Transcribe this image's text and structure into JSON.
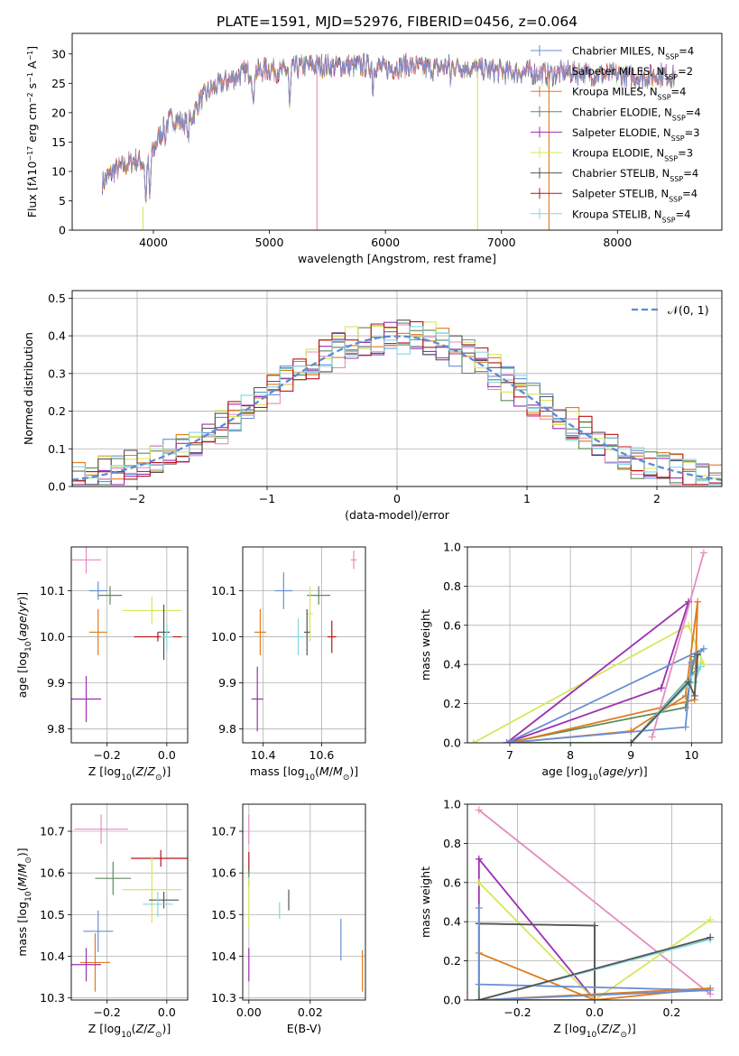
{
  "figure": {
    "title": "PLATE=1591, MJD=52976, FIBERID=0456, z=0.064"
  },
  "colors": {
    "chabrier_miles": "#6b8fd6",
    "salpeter_miles": "#e58dc0",
    "kroupa_miles": "#e07b1c",
    "chabrier_elodie": "#5f8a60",
    "salpeter_elodie": "#9b2fb0",
    "kroupa_elodie": "#d4e85a",
    "chabrier_stelib": "#555555",
    "salpeter_stelib": "#b81418",
    "kroupa_stelib": "#86d6dd",
    "normal": "#5b8bd6",
    "grid": "#b0b0b0"
  },
  "chart_data": [
    {
      "type": "line",
      "panel": "spectrum",
      "xlabel": "wavelength [Angstrom, rest frame]",
      "ylabel_html": "Flux [f<tspan font-style='italic'>λ</tspan>10<tspan baseline-shift='super' font-size='8'>−17</tspan> erg cm<tspan baseline-shift='super' font-size='8'>−2</tspan> s<tspan baseline-shift='super' font-size='8'>−1</tspan> A<tspan baseline-shift='super' font-size='8'>−1</tspan>]",
      "xlim": [
        3300,
        8900
      ],
      "ylim": [
        0,
        33.5
      ],
      "xticks": [
        "4000",
        "5000",
        "6000",
        "7000",
        "8000"
      ],
      "xtick_values": [
        4000,
        5000,
        6000,
        7000,
        8000
      ],
      "yticks": [
        "0",
        "5",
        "10",
        "15",
        "20",
        "25",
        "30"
      ],
      "ytick_values": [
        0,
        5,
        10,
        15,
        20,
        25,
        30
      ],
      "legend": [
        {
          "key": "chabrier_miles",
          "label": "Chabrier MILES, N",
          "n": "=4"
        },
        {
          "key": "salpeter_miles",
          "label": "Salpeter MILES, N",
          "n": "=2"
        },
        {
          "key": "kroupa_miles",
          "label": "Kroupa MILES, N",
          "n": "=4"
        },
        {
          "key": "chabrier_elodie",
          "label": "Chabrier ELODIE, N",
          "n": "=4"
        },
        {
          "key": "salpeter_elodie",
          "label": "Salpeter ELODIE, N",
          "n": "=3"
        },
        {
          "key": "kroupa_elodie",
          "label": "Kroupa ELODIE, N",
          "n": "=3"
        },
        {
          "key": "chabrier_stelib",
          "label": "Chabrier STELIB, N",
          "n": "=4"
        },
        {
          "key": "salpeter_stelib",
          "label": "Salpeter STELIB, N",
          "n": "=4"
        },
        {
          "key": "kroupa_stelib",
          "label": "Kroupa STELIB, N",
          "n": "=4"
        }
      ],
      "legend_sub": "SSP",
      "continuum": {
        "x": [
          3560,
          3650,
          3750,
          3850,
          3950,
          4050,
          4150,
          4300,
          4400,
          4500,
          4600,
          4700,
          4800,
          4900,
          5000,
          5100,
          5200,
          5300,
          5400,
          5500,
          5600,
          5700,
          5800,
          5900,
          6000,
          6200,
          6400,
          6600,
          6800,
          7000,
          7200,
          7400,
          7600,
          7800,
          8000,
          8200,
          8400,
          8500
        ],
        "y": [
          8,
          10,
          11,
          12,
          11,
          16,
          19,
          18,
          22,
          24,
          25,
          26,
          27,
          27,
          27.5,
          27,
          27.5,
          28,
          28,
          28,
          28,
          28,
          28,
          28,
          27.5,
          28,
          27.5,
          28,
          27.5,
          27,
          27,
          26.5,
          27,
          26.5,
          26.5,
          26,
          26.5,
          26
        ]
      },
      "absorption": [
        {
          "x": 3934,
          "y": 4
        },
        {
          "x": 3969,
          "y": 5
        },
        {
          "x": 4101,
          "y": 14
        },
        {
          "x": 4300,
          "y": 14
        },
        {
          "x": 4861,
          "y": 20
        },
        {
          "x": 5175,
          "y": 20
        },
        {
          "x": 5892,
          "y": 23
        },
        {
          "x": 6563,
          "y": 24
        }
      ],
      "spikes": [
        {
          "x": 3910,
          "key": "kroupa_elodie",
          "y0": 4,
          "y1": 0
        },
        {
          "x": 5410,
          "key": "salpeter_miles",
          "y0": 27,
          "y1": 0
        },
        {
          "x": 6795,
          "key": "kroupa_elodie",
          "y0": 27,
          "y1": 0
        },
        {
          "x": 7410,
          "key": "kroupa_miles",
          "y0": 27,
          "y1": 0
        }
      ]
    },
    {
      "type": "step",
      "panel": "residuals",
      "xlabel": "(data-model)/error",
      "ylabel": "Normed distribution",
      "xlim": [
        -2.5,
        2.5
      ],
      "ylim": [
        0,
        0.52
      ],
      "xticks": [
        "−2",
        "−1",
        "0",
        "1",
        "2"
      ],
      "xtick_values": [
        -2,
        -1,
        0,
        1,
        2
      ],
      "yticks": [
        "0.0",
        "0.1",
        "0.2",
        "0.3",
        "0.4",
        "0.5"
      ],
      "ytick_values": [
        0,
        0.1,
        0.2,
        0.3,
        0.4,
        0.5
      ],
      "legend_label": "𝒩(0, 1)",
      "bin_width": 0.1,
      "bin_start": -2.5,
      "series_keys": [
        "chabrier_miles",
        "salpeter_miles",
        "kroupa_miles",
        "chabrier_elodie",
        "salpeter_elodie",
        "kroupa_elodie",
        "chabrier_stelib",
        "salpeter_stelib",
        "kroupa_stelib"
      ],
      "series_jitter": [
        0.012,
        -0.015,
        0.018,
        -0.02,
        -0.01,
        0.02,
        0.008,
        0.015,
        -0.012
      ]
    },
    {
      "type": "errorbar",
      "panel": "age_vs_Z",
      "xlabel_html": "Z [log<tspan baseline-shift='sub' font-size='9'>10</tspan>(<tspan font-style='italic'>Z</tspan>/<tspan font-style='italic'>Z</tspan><tspan baseline-shift='sub' font-size='9'>⊙</tspan>)]",
      "ylabel_html": "age  [log<tspan baseline-shift='sub' font-size='9'>10</tspan>(<tspan font-style='italic'>age</tspan>/<tspan font-style='italic'>yr</tspan>)]",
      "xlim": [
        -0.32,
        0.07
      ],
      "ylim": [
        9.77,
        10.195
      ],
      "xticks": [
        "−0.2",
        "0.0"
      ],
      "xtick_values": [
        -0.2,
        0.0
      ],
      "yticks": [
        "9.8",
        "9.9",
        "10.0",
        "10.1"
      ],
      "ytick_values": [
        9.8,
        9.9,
        10.0,
        10.1
      ],
      "points": [
        {
          "key": "salpeter_miles",
          "x": -0.27,
          "xe": 0.05,
          "y": 10.167,
          "ye": 0.03
        },
        {
          "key": "chabrier_miles",
          "x": -0.23,
          "xe": 0.03,
          "y": 10.1,
          "ye": 0.02
        },
        {
          "key": "chabrier_elodie",
          "x": -0.19,
          "xe": 0.04,
          "y": 10.09,
          "ye": 0.02
        },
        {
          "key": "kroupa_elodie",
          "x": -0.05,
          "xe": 0.1,
          "y": 10.057,
          "ye": 0.03
        },
        {
          "key": "kroupa_miles",
          "x": -0.23,
          "xe": 0.03,
          "y": 10.01,
          "ye": 0.05
        },
        {
          "key": "chabrier_stelib",
          "x": -0.01,
          "xe": 0.02,
          "y": 10.01,
          "ye": 0.06
        },
        {
          "key": "salpeter_stelib",
          "x": -0.03,
          "xe": 0.08,
          "y": 10.0,
          "ye": 0.01
        },
        {
          "key": "kroupa_stelib",
          "x": 0.0,
          "xe": 0.02,
          "y": 10.0,
          "ye": 0.03
        },
        {
          "key": "salpeter_elodie",
          "x": -0.27,
          "xe": 0.05,
          "y": 9.865,
          "ye": 0.05
        }
      ]
    },
    {
      "type": "errorbar",
      "panel": "age_vs_mass",
      "xlabel_html": "mass [log<tspan baseline-shift='sub' font-size='9'>10</tspan>(<tspan font-style='italic'>M</tspan>/<tspan font-style='italic'>M</tspan><tspan baseline-shift='sub' font-size='9'>⊙</tspan>)]",
      "xlim": [
        10.33,
        10.75
      ],
      "ylim": [
        9.77,
        10.195
      ],
      "xticks": [
        "10.4",
        "10.6"
      ],
      "xtick_values": [
        10.4,
        10.6
      ],
      "yticks": [
        "9.8",
        "9.9",
        "10.0",
        "10.1"
      ],
      "ytick_values": [
        9.8,
        9.9,
        10.0,
        10.1
      ],
      "points": [
        {
          "key": "salpeter_miles",
          "x": 10.71,
          "xe": 0.01,
          "y": 10.167,
          "ye": 0.02
        },
        {
          "key": "chabrier_miles",
          "x": 10.47,
          "xe": 0.03,
          "y": 10.1,
          "ye": 0.04
        },
        {
          "key": "chabrier_elodie",
          "x": 10.59,
          "xe": 0.04,
          "y": 10.09,
          "ye": 0.02
        },
        {
          "key": "kroupa_elodie",
          "x": 10.56,
          "xe": 0.01,
          "y": 10.05,
          "ye": 0.06
        },
        {
          "key": "kroupa_miles",
          "x": 10.39,
          "xe": 0.02,
          "y": 10.01,
          "ye": 0.05
        },
        {
          "key": "chabrier_stelib",
          "x": 10.55,
          "xe": 0.01,
          "y": 10.01,
          "ye": 0.05
        },
        {
          "key": "kroupa_stelib",
          "x": 10.52,
          "xe": 0.02,
          "y": 10.0,
          "ye": 0.04
        },
        {
          "key": "salpeter_stelib",
          "x": 10.635,
          "xe": 0.015,
          "y": 10.0,
          "ye": 0.035
        },
        {
          "key": "salpeter_elodie",
          "x": 10.38,
          "xe": 0.02,
          "y": 9.865,
          "ye": 0.07
        }
      ]
    },
    {
      "type": "line",
      "panel": "weight_vs_age",
      "xlabel_html": "age  [log<tspan baseline-shift='sub' font-size='9'>10</tspan>(<tspan font-style='italic'>age</tspan>/<tspan font-style='italic'>yr</tspan>)]",
      "ylabel": "mass weight",
      "xlim": [
        6.3,
        10.5
      ],
      "ylim": [
        0,
        1.0
      ],
      "xticks": [
        "7",
        "8",
        "9",
        "10"
      ],
      "xtick_values": [
        7,
        8,
        9,
        10
      ],
      "yticks": [
        "0.0",
        "0.2",
        "0.4",
        "0.6",
        "0.8",
        "1.0"
      ],
      "ytick_values": [
        0,
        0.2,
        0.4,
        0.6,
        0.8,
        1.0
      ],
      "series": [
        {
          "key": "kroupa_elodie",
          "x": [
            6.4,
            9.95,
            10.2,
            10.15
          ],
          "y": [
            0.0,
            0.6,
            0.4,
            0.41
          ]
        },
        {
          "key": "salpeter_elodie",
          "x": [
            6.95,
            9.5,
            9.95,
            6.95
          ],
          "y": [
            0.0,
            0.28,
            0.72,
            0.0
          ]
        },
        {
          "key": "chabrier_elodie",
          "x": [
            6.95,
            9.9,
            10.05,
            10.1,
            9.0,
            6.95
          ],
          "y": [
            0.0,
            0.18,
            0.44,
            0.38,
            0.0,
            0.0
          ]
        },
        {
          "key": "kroupa_miles",
          "x": [
            7.0,
            9.0,
            9.9,
            10.1,
            10.05,
            7.0
          ],
          "y": [
            0.0,
            0.06,
            0.24,
            0.72,
            0.22,
            0.0
          ]
        },
        {
          "key": "chabrier_miles",
          "x": [
            6.95,
            9.9,
            10.0,
            10.2,
            6.95
          ],
          "y": [
            0.0,
            0.08,
            0.41,
            0.48,
            0.0
          ]
        },
        {
          "key": "salpeter_miles",
          "x": [
            9.35,
            10.2
          ],
          "y": [
            0.03,
            0.97
          ]
        },
        {
          "key": "kroupa_stelib",
          "x": [
            9.0,
            9.95,
            10.05,
            10.15,
            9.0
          ],
          "y": [
            0.0,
            0.3,
            0.31,
            0.39,
            0.0
          ]
        },
        {
          "key": "chabrier_stelib",
          "x": [
            9.0,
            9.95,
            10.05,
            10.1
          ],
          "y": [
            0.0,
            0.31,
            0.24,
            0.45
          ]
        }
      ]
    },
    {
      "type": "errorbar",
      "panel": "mass_vs_Z",
      "xlabel_html": "Z [log<tspan baseline-shift='sub' font-size='9'>10</tspan>(<tspan font-style='italic'>Z</tspan>/<tspan font-style='italic'>Z</tspan><tspan baseline-shift='sub' font-size='9'>⊙</tspan>)]",
      "ylabel_html": "mass [log<tspan baseline-shift='sub' font-size='9'>10</tspan>(<tspan font-style='italic'>M</tspan>/<tspan font-style='italic'>M</tspan><tspan baseline-shift='sub' font-size='9'>⊙</tspan>)]",
      "xlim": [
        -0.32,
        0.07
      ],
      "ylim": [
        10.295,
        10.765
      ],
      "xticks": [
        "−0.2",
        "0.0"
      ],
      "xtick_values": [
        -0.2,
        0.0
      ],
      "yticks": [
        "10.3",
        "10.4",
        "10.5",
        "10.6",
        "10.7"
      ],
      "ytick_values": [
        10.3,
        10.4,
        10.5,
        10.6,
        10.7
      ],
      "points": [
        {
          "key": "salpeter_miles",
          "x": -0.22,
          "xe": 0.09,
          "y": 10.705,
          "ye": 0.035
        },
        {
          "key": "salpeter_stelib",
          "x": -0.02,
          "xe": 0.1,
          "y": 10.635,
          "ye": 0.02
        },
        {
          "key": "chabrier_elodie",
          "x": -0.18,
          "xe": 0.06,
          "y": 10.587,
          "ye": 0.04
        },
        {
          "key": "kroupa_elodie",
          "x": -0.05,
          "xe": 0.1,
          "y": 10.56,
          "ye": 0.08
        },
        {
          "key": "chabrier_stelib",
          "x": -0.01,
          "xe": 0.05,
          "y": 10.535,
          "ye": 0.02
        },
        {
          "key": "kroupa_stelib",
          "x": -0.03,
          "xe": 0.05,
          "y": 10.525,
          "ye": 0.03
        },
        {
          "key": "chabrier_miles",
          "x": -0.23,
          "xe": 0.05,
          "y": 10.46,
          "ye": 0.05
        },
        {
          "key": "kroupa_miles",
          "x": -0.24,
          "xe": 0.05,
          "y": 10.385,
          "ye": 0.07
        },
        {
          "key": "salpeter_elodie",
          "x": -0.27,
          "xe": 0.05,
          "y": 10.38,
          "ye": 0.04
        }
      ]
    },
    {
      "type": "errorbar",
      "panel": "mass_vs_ebv",
      "xlabel": "E(B-V)",
      "xlim": [
        -0.002,
        0.038
      ],
      "ylim": [
        10.295,
        10.765
      ],
      "xticks": [
        "0.00",
        "0.02"
      ],
      "xtick_values": [
        0.0,
        0.02
      ],
      "yticks": [
        "10.3",
        "10.4",
        "10.5",
        "10.6",
        "10.7"
      ],
      "ytick_values": [
        10.3,
        10.4,
        10.5,
        10.6,
        10.7
      ],
      "points": [
        {
          "key": "salpeter_miles",
          "x": 0.0,
          "xe": 0,
          "y": 10.705,
          "ye": 0.035
        },
        {
          "key": "salpeter_stelib",
          "x": 0.0,
          "xe": 0,
          "y": 10.625,
          "ye": 0.025
        },
        {
          "key": "chabrier_elodie",
          "x": 0.0,
          "xe": 0,
          "y": 10.587,
          "ye": 0.02
        },
        {
          "key": "kroupa_elodie",
          "x": 0.0,
          "xe": 0,
          "y": 10.53,
          "ye": 0.06
        },
        {
          "key": "chabrier_stelib",
          "x": 0.013,
          "xe": 0,
          "y": 10.535,
          "ye": 0.025
        },
        {
          "key": "kroupa_stelib",
          "x": 0.01,
          "xe": 0,
          "y": 10.51,
          "ye": 0.02
        },
        {
          "key": "chabrier_miles",
          "x": 0.03,
          "xe": 0,
          "y": 10.44,
          "ye": 0.05
        },
        {
          "key": "kroupa_miles",
          "x": 0.037,
          "xe": 0,
          "y": 10.365,
          "ye": 0.05
        },
        {
          "key": "salpeter_elodie",
          "x": 0.0,
          "xe": 0,
          "y": 10.38,
          "ye": 0.04
        }
      ]
    },
    {
      "type": "line",
      "panel": "weight_vs_Z",
      "xlabel_html": "Z [log<tspan baseline-shift='sub' font-size='9'>10</tspan>(<tspan font-style='italic'>Z</tspan>/<tspan font-style='italic'>Z</tspan><tspan baseline-shift='sub' font-size='9'>⊙</tspan>)]",
      "ylabel": "mass weight",
      "xlim": [
        -0.33,
        0.33
      ],
      "ylim": [
        0,
        1.0
      ],
      "xticks": [
        "−0.2",
        "0.0",
        "0.2"
      ],
      "xtick_values": [
        -0.2,
        0.0,
        0.2
      ],
      "yticks": [
        "0.0",
        "0.2",
        "0.4",
        "0.6",
        "0.8",
        "1.0"
      ],
      "ytick_values": [
        0,
        0.2,
        0.4,
        0.6,
        0.8,
        1.0
      ],
      "series": [
        {
          "key": "salpeter_miles",
          "x": [
            -0.3,
            0.3
          ],
          "y": [
            0.97,
            0.03
          ]
        },
        {
          "key": "salpeter_elodie",
          "x": [
            -0.3,
            -0.3,
            0.0
          ],
          "y": [
            0.0,
            0.72,
            0.0
          ]
        },
        {
          "key": "kroupa_elodie",
          "x": [
            -0.3,
            0.0,
            0.3
          ],
          "y": [
            0.6,
            0.0,
            0.41
          ]
        },
        {
          "key": "chabrier_elodie",
          "x": [
            -0.3,
            -0.3,
            0.0,
            0.0,
            -0.3
          ],
          "y": [
            0.0,
            0.39,
            0.38,
            0.0,
            0.0
          ]
        },
        {
          "key": "chabrier_stelib",
          "x": [
            -0.3,
            0.0,
            0.0
          ],
          "y": [
            0.39,
            0.38,
            0.0
          ]
        },
        {
          "key": "kroupa_miles",
          "x": [
            -0.3,
            0.0,
            0.3,
            -0.3
          ],
          "y": [
            0.24,
            0.0,
            0.06,
            0.0
          ]
        },
        {
          "key": "chabrier_miles",
          "x": [
            -0.3,
            -0.3,
            0.3,
            -0.3
          ],
          "y": [
            0.47,
            0.08,
            0.05,
            0.0
          ]
        },
        {
          "key": "kroupa_stelib",
          "x": [
            -0.3,
            0.3
          ],
          "y": [
            0.0,
            0.31
          ]
        },
        {
          "key": "chabrier_stelib2",
          "x": [
            -0.3,
            0.3
          ],
          "y": [
            0.0,
            0.32
          ]
        }
      ]
    }
  ]
}
